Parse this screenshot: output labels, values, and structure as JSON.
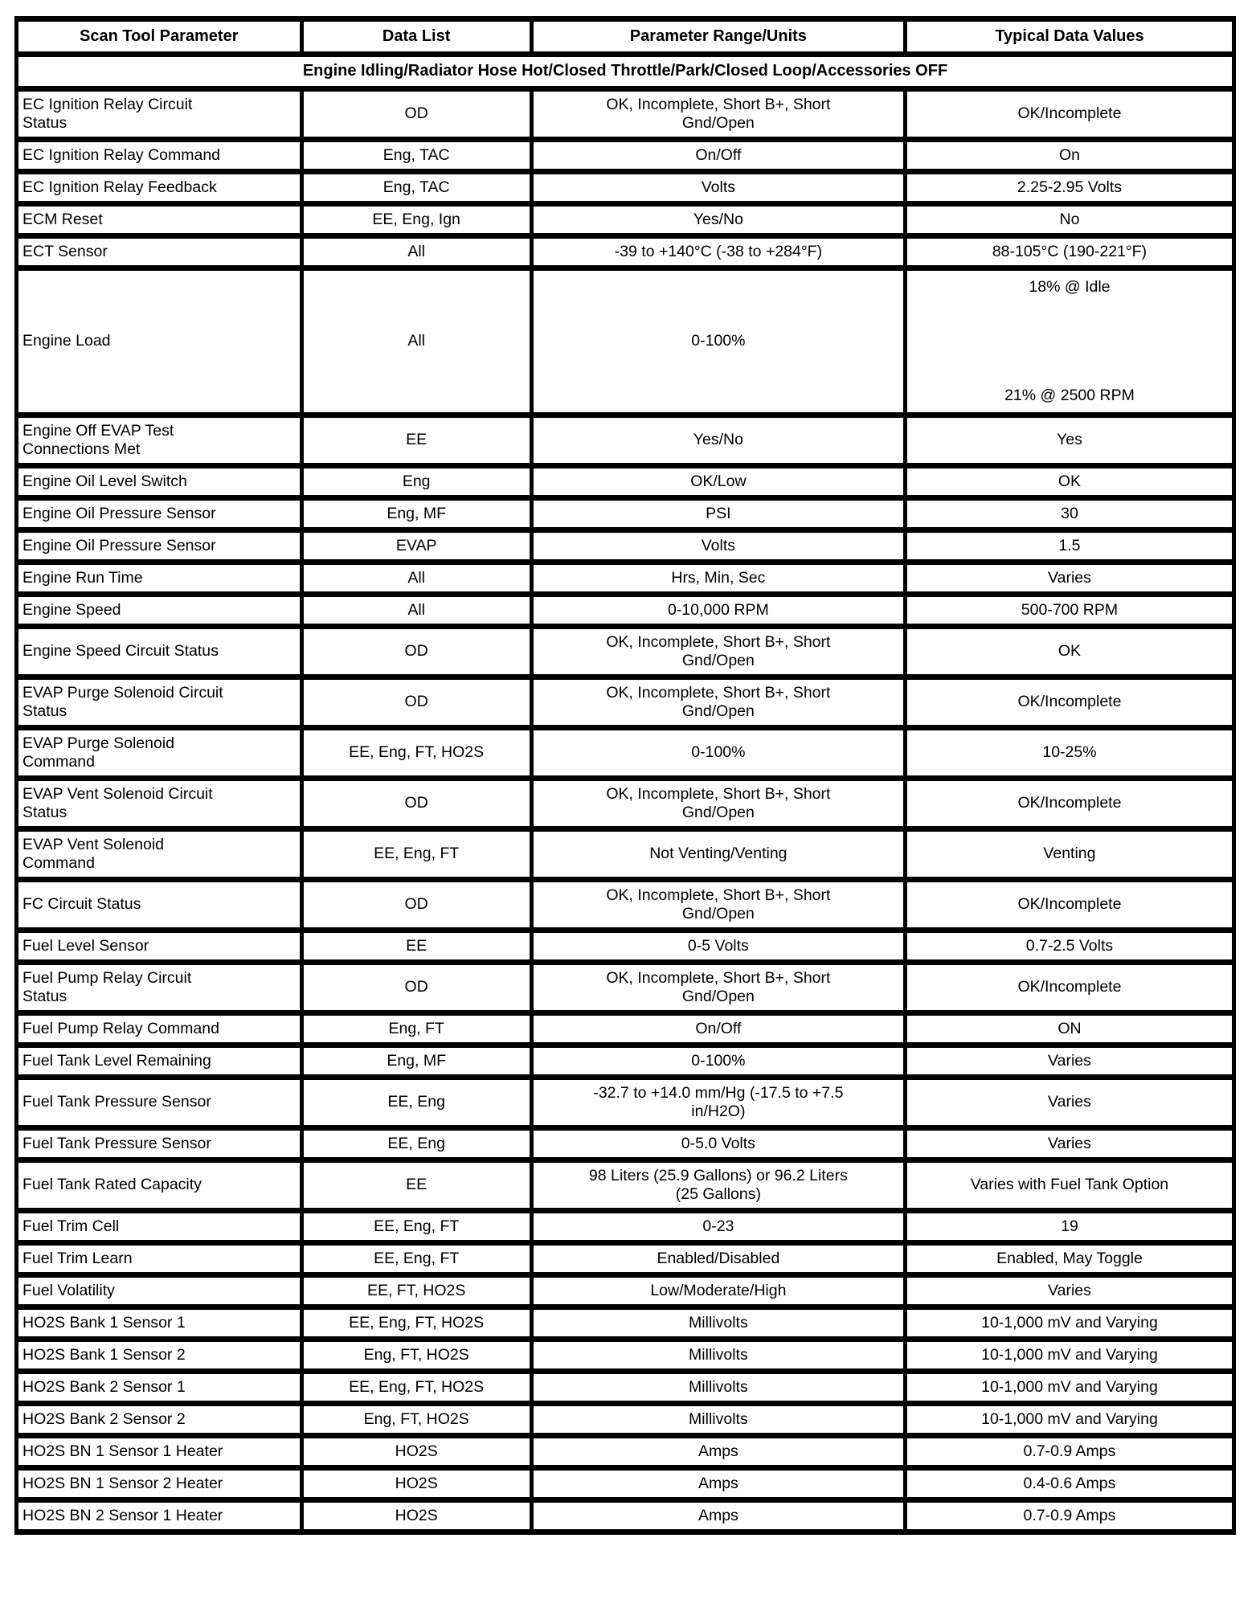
{
  "table": {
    "headers": [
      "Scan Tool Parameter",
      "Data List",
      "Parameter Range/Units",
      "Typical Data Values"
    ],
    "condition": "Engine Idling/Radiator Hose Hot/Closed Throttle/Park/Closed Loop/Accessories OFF",
    "rows": [
      {
        "parameter": "EC Ignition Relay Circuit\nStatus",
        "data_list": "OD",
        "range": "OK, Incomplete, Short B+, Short\nGnd/Open",
        "value": "OK/Incomplete"
      },
      {
        "parameter": "EC Ignition Relay Command",
        "data_list": "Eng, TAC",
        "range": "On/Off",
        "value": "On"
      },
      {
        "parameter": "EC Ignition Relay Feedback",
        "data_list": "Eng, TAC",
        "range": "Volts",
        "value": "2.25-2.95 Volts"
      },
      {
        "parameter": "ECM Reset",
        "data_list": "EE, Eng, Ign",
        "range": "Yes/No",
        "value": "No"
      },
      {
        "parameter": "ECT Sensor",
        "data_list": "All",
        "range": "-39 to +140°C (-38 to +284°F)",
        "value": "88-105°C (190-221°F)"
      },
      {
        "parameter": "Engine Load",
        "data_list": "All",
        "range": "0-100%",
        "tall": true,
        "value_top": "18% @ Idle",
        "value_bottom": "21% @ 2500 RPM"
      },
      {
        "parameter": "Engine Off EVAP Test\nConnections Met",
        "data_list": "EE",
        "range": "Yes/No",
        "value": "Yes"
      },
      {
        "parameter": "Engine Oil Level Switch",
        "data_list": "Eng",
        "range": "OK/Low",
        "value": "OK"
      },
      {
        "parameter": "Engine Oil Pressure Sensor",
        "data_list": "Eng, MF",
        "range": "PSI",
        "value": "30"
      },
      {
        "parameter": "Engine Oil Pressure Sensor",
        "data_list": "EVAP",
        "range": "Volts",
        "value": "1.5"
      },
      {
        "parameter": "Engine Run Time",
        "data_list": "All",
        "range": "Hrs, Min, Sec",
        "value": "Varies"
      },
      {
        "parameter": "Engine Speed",
        "data_list": "All",
        "range": "0-10,000 RPM",
        "value": "500-700 RPM"
      },
      {
        "parameter": "Engine Speed Circuit Status",
        "data_list": "OD",
        "range": "OK, Incomplete, Short B+, Short\nGnd/Open",
        "value": "OK"
      },
      {
        "parameter": "EVAP Purge Solenoid Circuit\nStatus",
        "data_list": "OD",
        "range": "OK, Incomplete, Short B+, Short\nGnd/Open",
        "value": "OK/Incomplete"
      },
      {
        "parameter": "EVAP Purge Solenoid\nCommand",
        "data_list": "EE, Eng, FT, HO2S",
        "range": "0-100%",
        "value": "10-25%"
      },
      {
        "parameter": "EVAP Vent Solenoid Circuit\nStatus",
        "data_list": "OD",
        "range": "OK, Incomplete, Short B+, Short\nGnd/Open",
        "value": "OK/Incomplete"
      },
      {
        "parameter": "EVAP Vent Solenoid\nCommand",
        "data_list": "EE, Eng, FT",
        "range": "Not Venting/Venting",
        "value": "Venting"
      },
      {
        "parameter": "FC Circuit Status",
        "data_list": "OD",
        "range": "OK, Incomplete, Short B+, Short\nGnd/Open",
        "value": "OK/Incomplete"
      },
      {
        "parameter": "Fuel Level Sensor",
        "data_list": "EE",
        "range": "0-5 Volts",
        "value": "0.7-2.5 Volts"
      },
      {
        "parameter": "Fuel Pump Relay Circuit\nStatus",
        "data_list": "OD",
        "range": "OK, Incomplete, Short B+, Short\nGnd/Open",
        "value": "OK/Incomplete"
      },
      {
        "parameter": "Fuel Pump Relay Command",
        "data_list": "Eng, FT",
        "range": "On/Off",
        "value": "ON"
      },
      {
        "parameter": "Fuel Tank Level Remaining",
        "data_list": "Eng, MF",
        "range": "0-100%",
        "value": "Varies"
      },
      {
        "parameter": "Fuel Tank Pressure Sensor",
        "data_list": "EE, Eng",
        "range": "-32.7 to +14.0 mm/Hg (-17.5 to +7.5\nin/H2O)",
        "value": "Varies"
      },
      {
        "parameter": "Fuel Tank Pressure Sensor",
        "data_list": "EE, Eng",
        "range": "0-5.0 Volts",
        "value": "Varies"
      },
      {
        "parameter": "Fuel Tank Rated Capacity",
        "data_list": "EE",
        "range": "98 Liters (25.9 Gallons) or 96.2 Liters\n(25 Gallons)",
        "value": "Varies with Fuel Tank Option"
      },
      {
        "parameter": "Fuel Trim Cell",
        "data_list": "EE, Eng, FT",
        "range": "0-23",
        "value": "19"
      },
      {
        "parameter": "Fuel Trim Learn",
        "data_list": "EE, Eng, FT",
        "range": "Enabled/Disabled",
        "value": "Enabled, May Toggle"
      },
      {
        "parameter": "Fuel Volatility",
        "data_list": "EE, FT, HO2S",
        "range": "Low/Moderate/High",
        "value": "Varies"
      },
      {
        "parameter": "HO2S Bank 1 Sensor 1",
        "data_list": "EE, Eng, FT, HO2S",
        "range": "Millivolts",
        "value": "10-1,000 mV and Varying"
      },
      {
        "parameter": "HO2S Bank 1 Sensor 2",
        "data_list": "Eng, FT, HO2S",
        "range": "Millivolts",
        "value": "10-1,000 mV and Varying"
      },
      {
        "parameter": "HO2S Bank 2 Sensor 1",
        "data_list": "EE, Eng, FT, HO2S",
        "range": "Millivolts",
        "value": "10-1,000 mV and Varying"
      },
      {
        "parameter": "HO2S Bank 2 Sensor 2",
        "data_list": "Eng, FT, HO2S",
        "range": "Millivolts",
        "value": "10-1,000 mV and Varying"
      },
      {
        "parameter": "HO2S BN 1 Sensor 1 Heater",
        "data_list": "HO2S",
        "range": "Amps",
        "value": "0.7-0.9 Amps"
      },
      {
        "parameter": "HO2S BN 1 Sensor 2 Heater",
        "data_list": "HO2S",
        "range": "Amps",
        "value": "0.4-0.6 Amps"
      },
      {
        "parameter": "HO2S BN 2 Sensor 1 Heater",
        "data_list": "HO2S",
        "range": "Amps",
        "value": "0.7-0.9 Amps"
      }
    ]
  }
}
